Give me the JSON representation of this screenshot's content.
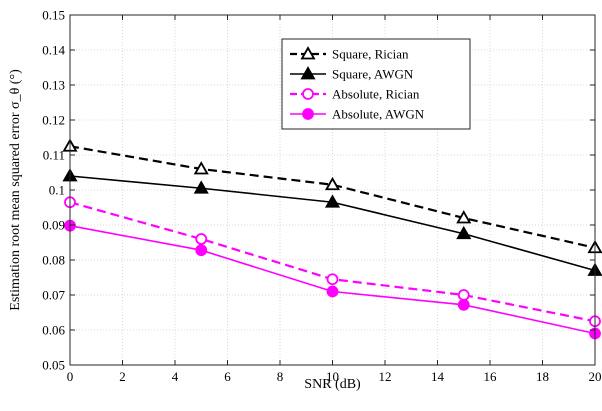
{
  "chart_data": {
    "type": "line",
    "xlabel": "SNR (dB)",
    "ylabel": "Estimation root mean squared error σ_θ (°)",
    "xlim": [
      0,
      20
    ],
    "ylim": [
      0.05,
      0.15
    ],
    "x_ticks": [
      0,
      2,
      4,
      6,
      8,
      10,
      12,
      14,
      16,
      18,
      20
    ],
    "y_ticks": [
      0.05,
      0.06,
      0.07,
      0.08,
      0.09,
      0.1,
      0.11,
      0.12,
      0.13,
      0.14,
      0.15
    ],
    "grid": true,
    "legend_position": "top-right",
    "x": [
      0,
      5,
      10,
      15,
      20
    ],
    "series": [
      {
        "name": "Square, Rician",
        "values": [
          0.1125,
          0.106,
          0.1015,
          0.092,
          0.0835
        ],
        "color": "#000000",
        "line_style": "dashed",
        "marker": "open-triangle"
      },
      {
        "name": "Square, AWGN",
        "values": [
          0.104,
          0.1005,
          0.0965,
          0.0875,
          0.077
        ],
        "color": "#000000",
        "line_style": "solid",
        "marker": "filled-triangle"
      },
      {
        "name": "Absolute, Rician",
        "values": [
          0.0965,
          0.086,
          0.0745,
          0.07,
          0.0625
        ],
        "color": "#ff00ff",
        "line_style": "dashed",
        "marker": "open-circle"
      },
      {
        "name": "Absolute, AWGN",
        "values": [
          0.0898,
          0.0828,
          0.071,
          0.0672,
          0.059
        ],
        "color": "#ff00ff",
        "line_style": "solid",
        "marker": "filled-circle"
      }
    ]
  }
}
